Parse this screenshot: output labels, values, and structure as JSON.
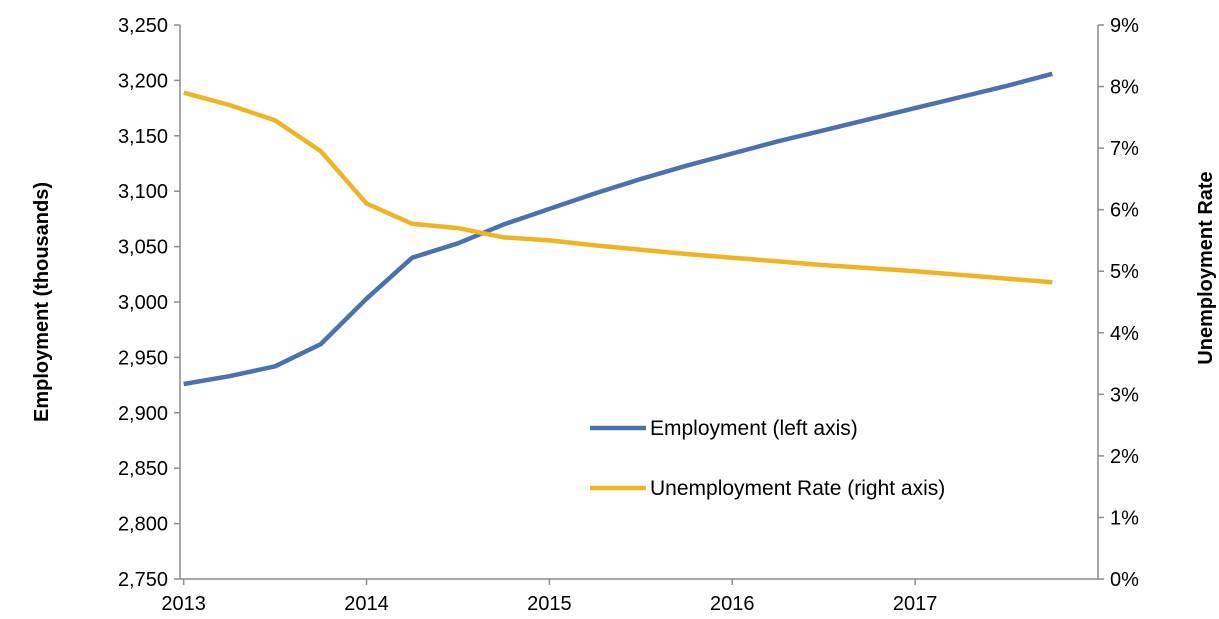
{
  "chart_data": {
    "type": "line",
    "x_tick_labels": [
      "2013",
      "2014",
      "2015",
      "2016",
      "2017"
    ],
    "x_ticks": [
      2013,
      2014,
      2015,
      2016,
      2017
    ],
    "xlim": [
      2012.98,
      2018.0
    ],
    "y_left": {
      "label": "Employment (thousands)",
      "ylim": [
        2750,
        3250
      ],
      "ticks": [
        2750,
        2800,
        2850,
        2900,
        2950,
        3000,
        3050,
        3100,
        3150,
        3200,
        3250
      ],
      "tick_labels": [
        "2,750",
        "2,800",
        "2,850",
        "2,900",
        "2,950",
        "3,000",
        "3,050",
        "3,100",
        "3,150",
        "3,200",
        "3,250"
      ]
    },
    "y_right": {
      "label": "Unemployment Rate",
      "ylim": [
        0,
        9
      ],
      "ticks": [
        0,
        1,
        2,
        3,
        4,
        5,
        6,
        7,
        8,
        9
      ],
      "tick_labels": [
        "0%",
        "1%",
        "2%",
        "3%",
        "4%",
        "5%",
        "6%",
        "7%",
        "8%",
        "9%"
      ]
    },
    "series": [
      {
        "name": "Employment (left axis)",
        "axis": "left",
        "color": "#4a72b0",
        "x": [
          2013.0,
          2013.25,
          2013.5,
          2013.75,
          2014.0,
          2014.25,
          2014.5,
          2014.75,
          2015.0,
          2015.25,
          2015.5,
          2015.75,
          2016.0,
          2016.25,
          2016.5,
          2016.75,
          2017.0,
          2017.25,
          2017.5,
          2017.75
        ],
        "values": [
          2926,
          2933,
          2942,
          2962,
          3003,
          3040,
          3053,
          3070,
          3084,
          3098,
          3111,
          3123,
          3134,
          3145,
          3155,
          3165,
          3175,
          3185,
          3195,
          3206
        ]
      },
      {
        "name": "Unemployment Rate (right axis)",
        "axis": "right",
        "color": "#f0b323",
        "x": [
          2013.0,
          2013.25,
          2013.5,
          2013.75,
          2014.0,
          2014.25,
          2014.5,
          2014.75,
          2015.0,
          2015.25,
          2015.5,
          2015.75,
          2016.0,
          2016.25,
          2016.5,
          2016.75,
          2017.0,
          2017.25,
          2017.5,
          2017.75
        ],
        "values": [
          7.9,
          7.7,
          7.45,
          6.95,
          6.1,
          5.77,
          5.7,
          5.55,
          5.5,
          5.42,
          5.35,
          5.28,
          5.22,
          5.16,
          5.1,
          5.05,
          5.0,
          4.94,
          4.88,
          4.82
        ]
      }
    ],
    "legend": {
      "placement": "center-right",
      "entries": [
        "Employment (left axis)",
        "Unemployment Rate (right axis)"
      ]
    },
    "grid": false
  }
}
